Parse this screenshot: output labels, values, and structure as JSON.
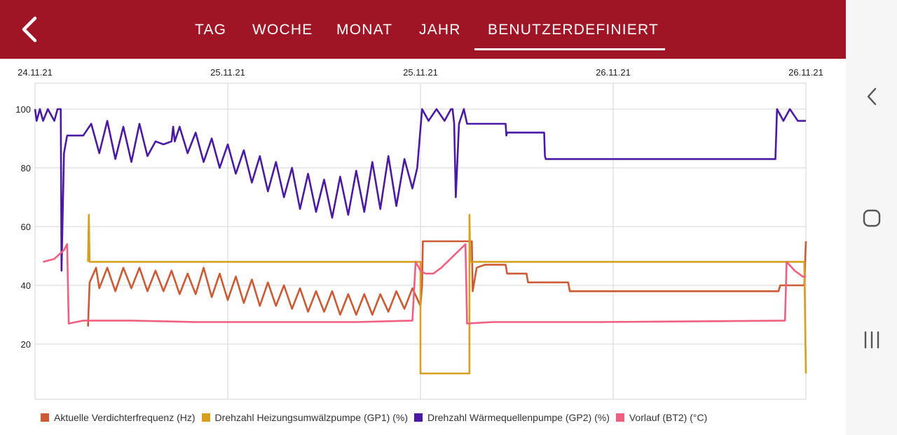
{
  "header": {
    "back_icon": "chevron-left-icon",
    "tabs": [
      {
        "label": "TAG"
      },
      {
        "label": "WOCHE"
      },
      {
        "label": "MONAT"
      },
      {
        "label": "JAHR"
      },
      {
        "label": "BENUTZERDEFINIERT",
        "active": true
      }
    ],
    "colors": {
      "bar": "#a01525",
      "text": "#ffffff"
    }
  },
  "navbar": {
    "icons": [
      "nav-back-icon",
      "nav-home-icon",
      "nav-recents-icon"
    ]
  },
  "chart_data": {
    "type": "line",
    "x_date_labels": [
      "24.11.21",
      "25.11.21",
      "25.11.21",
      "26.11.21",
      "26.11.21"
    ],
    "x_range_hours": [
      0,
      48
    ],
    "y_ticks": [
      "100",
      "80",
      "60",
      "40",
      "20"
    ],
    "ylim": [
      0,
      110
    ],
    "grid": true,
    "legend_position": "bottom",
    "series": [
      {
        "name": "Aktuelle Verdichterfrequenz (Hz)",
        "color": "#cc5a35",
        "points": [
          [
            3.3,
            26
          ],
          [
            3.4,
            41
          ],
          [
            3.8,
            46
          ],
          [
            4,
            39
          ],
          [
            4.5,
            46
          ],
          [
            5,
            38
          ],
          [
            5.5,
            46
          ],
          [
            6,
            39
          ],
          [
            6.5,
            46
          ],
          [
            7,
            38
          ],
          [
            7.5,
            45
          ],
          [
            8,
            38
          ],
          [
            8.5,
            45
          ],
          [
            9,
            37
          ],
          [
            9.5,
            44
          ],
          [
            10,
            37
          ],
          [
            10.5,
            46
          ],
          [
            11,
            36
          ],
          [
            11.5,
            44
          ],
          [
            12,
            35
          ],
          [
            12.5,
            43
          ],
          [
            13,
            34
          ],
          [
            13.5,
            42
          ],
          [
            14,
            33
          ],
          [
            14.5,
            41
          ],
          [
            15,
            33
          ],
          [
            15.5,
            40
          ],
          [
            16,
            32
          ],
          [
            16.5,
            39
          ],
          [
            17,
            31
          ],
          [
            17.5,
            38
          ],
          [
            18,
            31
          ],
          [
            18.5,
            38
          ],
          [
            19,
            30
          ],
          [
            19.5,
            37
          ],
          [
            20,
            30
          ],
          [
            20.5,
            37
          ],
          [
            21,
            30
          ],
          [
            21.5,
            37
          ],
          [
            22,
            31
          ],
          [
            22.5,
            38
          ],
          [
            23,
            32
          ],
          [
            23.5,
            39
          ],
          [
            24,
            33
          ],
          [
            24.1,
            40
          ],
          [
            24.15,
            55
          ],
          [
            26.1,
            55
          ],
          [
            26.15,
            55
          ],
          [
            27.2,
            55
          ],
          [
            27.25,
            38
          ],
          [
            27.5,
            46
          ],
          [
            28,
            47
          ],
          [
            29.3,
            47
          ],
          [
            29.4,
            44
          ],
          [
            30.6,
            44
          ],
          [
            30.7,
            41
          ],
          [
            33.2,
            41
          ],
          [
            33.3,
            38
          ],
          [
            46.3,
            38
          ],
          [
            46.4,
            40
          ],
          [
            47.9,
            40
          ],
          [
            48,
            55
          ]
        ]
      },
      {
        "name": "Drehzahl Heizungsumwälzpumpe (GP1) (%)",
        "color": "#d6a01e",
        "points": [
          [
            3.3,
            48
          ],
          [
            3.35,
            64
          ],
          [
            3.4,
            48
          ],
          [
            23.9,
            48
          ],
          [
            24,
            48
          ],
          [
            24,
            10
          ],
          [
            26.1,
            10
          ],
          [
            27.0,
            10
          ],
          [
            27.05,
            10
          ],
          [
            27.05,
            64
          ],
          [
            27.1,
            48
          ],
          [
            47.9,
            48
          ],
          [
            48,
            10
          ]
        ]
      },
      {
        "name": "Drehzahl Wärmequellenpumpe (GP2) (%)",
        "color": "#4a1aa5",
        "points": [
          [
            0,
            100
          ],
          [
            0.1,
            96
          ],
          [
            0.3,
            100
          ],
          [
            0.5,
            96
          ],
          [
            0.8,
            100
          ],
          [
            1.2,
            96
          ],
          [
            1.4,
            100
          ],
          [
            1.6,
            100
          ],
          [
            1.65,
            45
          ],
          [
            1.8,
            85
          ],
          [
            2,
            91
          ],
          [
            2.5,
            91
          ],
          [
            3.0,
            91
          ],
          [
            3.5,
            95
          ],
          [
            4,
            85
          ],
          [
            4.5,
            96
          ],
          [
            5,
            83
          ],
          [
            5.5,
            94
          ],
          [
            6,
            82
          ],
          [
            6.5,
            95
          ],
          [
            7,
            84
          ],
          [
            7.5,
            89
          ],
          [
            8,
            88
          ],
          [
            8.5,
            89
          ],
          [
            8.6,
            94
          ],
          [
            8.7,
            89
          ],
          [
            9,
            94
          ],
          [
            9.5,
            85
          ],
          [
            10,
            92
          ],
          [
            10.5,
            82
          ],
          [
            11,
            90
          ],
          [
            11.5,
            80
          ],
          [
            12,
            88
          ],
          [
            12.5,
            78
          ],
          [
            13,
            86
          ],
          [
            13.5,
            75
          ],
          [
            14,
            84
          ],
          [
            14.5,
            72
          ],
          [
            15,
            82
          ],
          [
            15.5,
            70
          ],
          [
            16,
            80
          ],
          [
            16.5,
            66
          ],
          [
            17,
            78
          ],
          [
            17.5,
            65
          ],
          [
            18,
            76
          ],
          [
            18.5,
            63
          ],
          [
            19,
            77
          ],
          [
            19.5,
            64
          ],
          [
            20,
            79
          ],
          [
            20.5,
            65
          ],
          [
            21,
            82
          ],
          [
            21.5,
            66
          ],
          [
            22,
            84
          ],
          [
            22.5,
            67
          ],
          [
            23,
            83
          ],
          [
            23.5,
            73
          ],
          [
            23.8,
            80
          ],
          [
            24.1,
            100
          ],
          [
            24.5,
            96
          ],
          [
            25,
            100
          ],
          [
            25.5,
            96
          ],
          [
            25.9,
            100
          ],
          [
            26.0,
            100
          ],
          [
            26.1,
            95
          ],
          [
            26.2,
            70
          ],
          [
            26.4,
            95
          ],
          [
            26.7,
            100
          ],
          [
            26.9,
            95
          ],
          [
            29.3,
            95
          ],
          [
            29.35,
            91
          ],
          [
            29.4,
            92
          ],
          [
            31.7,
            92
          ],
          [
            31.75,
            84
          ],
          [
            31.8,
            83
          ],
          [
            46.1,
            83
          ],
          [
            46.2,
            100
          ],
          [
            46.6,
            96
          ],
          [
            47,
            100
          ],
          [
            47.5,
            96
          ],
          [
            48,
            96
          ]
        ]
      },
      {
        "name": "Vorlauf (BT2) (°C)",
        "color": "#ef5f80",
        "points": [
          [
            0.5,
            48
          ],
          [
            1.2,
            49
          ],
          [
            1.8,
            52
          ],
          [
            2.0,
            54
          ],
          [
            2.1,
            27
          ],
          [
            3.0,
            28
          ],
          [
            6.0,
            28
          ],
          [
            10.0,
            27.5
          ],
          [
            15.0,
            27.5
          ],
          [
            20.0,
            27.5
          ],
          [
            23.5,
            28
          ],
          [
            23.7,
            48
          ],
          [
            24.0,
            45
          ],
          [
            24.3,
            44
          ],
          [
            24.8,
            44
          ],
          [
            25.3,
            46
          ],
          [
            26.8,
            54
          ],
          [
            26.9,
            27
          ],
          [
            28.5,
            27.5
          ],
          [
            35.0,
            27.5
          ],
          [
            40.0,
            27.7
          ],
          [
            46.7,
            28
          ],
          [
            46.8,
            48
          ],
          [
            47.3,
            45
          ],
          [
            47.8,
            43
          ],
          [
            48,
            43
          ]
        ]
      }
    ]
  }
}
